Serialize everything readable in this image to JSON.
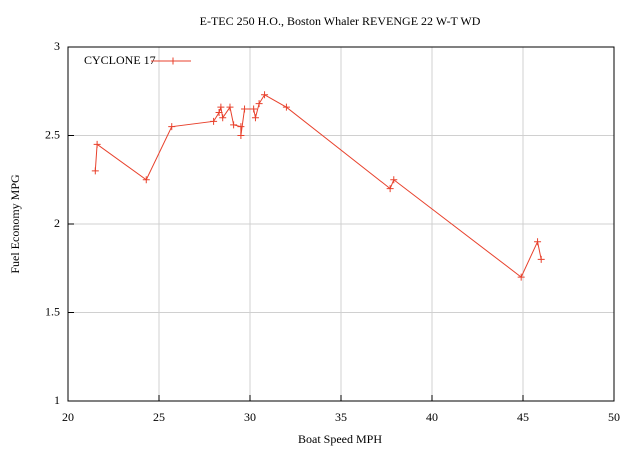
{
  "chart_data": {
    "type": "line",
    "title": "E-TEC 250 H.O., Boston Whaler REVENGE 22 W-T WD",
    "xlabel": "Boat Speed MPH",
    "ylabel": "Fuel Economy MPG",
    "x": [
      21.5,
      21.6,
      24.3,
      25.7,
      28.0,
      28.3,
      28.4,
      28.5,
      28.9,
      29.1,
      29.5,
      29.5,
      29.7,
      30.2,
      30.3,
      30.5,
      30.8,
      32.0,
      37.7,
      37.9,
      44.9,
      45.8,
      46.0
    ],
    "series": [
      {
        "name": "CYCLONE 17",
        "color": "#e8412c",
        "values": [
          2.3,
          2.45,
          2.25,
          2.55,
          2.58,
          2.63,
          2.66,
          2.6,
          2.66,
          2.56,
          2.55,
          2.5,
          2.65,
          2.65,
          2.6,
          2.68,
          2.73,
          2.66,
          2.2,
          2.25,
          1.7,
          1.9,
          1.8
        ]
      }
    ],
    "xlim": [
      20,
      50
    ],
    "xticks": [
      20,
      25,
      30,
      35,
      40,
      45,
      50
    ],
    "ylim": [
      1,
      3
    ],
    "yticks": [
      1,
      1.5,
      2,
      2.5,
      3
    ],
    "grid": true,
    "legend": "top-left"
  }
}
